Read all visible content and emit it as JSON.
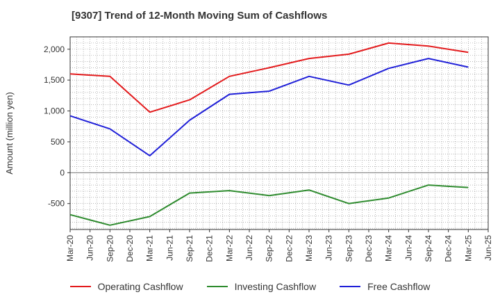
{
  "chart_data": {
    "type": "line",
    "title": "[9307]  Trend of 12-Month Moving Sum of Cashflows",
    "ylabel": "Amount (million yen)",
    "xlabel": "",
    "ylim": [
      -920,
      2200
    ],
    "yticks": [
      -500,
      0,
      500,
      1000,
      1500,
      2000
    ],
    "ytick_labels": [
      "-500",
      "0",
      "500",
      "1,000",
      "1,500",
      "2,000"
    ],
    "x_categories": [
      "Mar-20",
      "Jun-20",
      "Sep-20",
      "Dec-20",
      "Mar-21",
      "Jun-21",
      "Sep-21",
      "Dec-21",
      "Mar-22",
      "Jun-22",
      "Sep-22",
      "Dec-22",
      "Mar-23",
      "Jun-23",
      "Sep-23",
      "Dec-23",
      "Mar-24",
      "Jun-24",
      "Sep-24",
      "Dec-24",
      "Mar-25",
      "Jun-25"
    ],
    "grid": true,
    "legend_position": "bottom",
    "series": [
      {
        "name": "Operating Cashflow",
        "color": "#e31a1c",
        "points": [
          [
            "Mar-20",
            1600
          ],
          [
            "Sep-20",
            1560
          ],
          [
            "Mar-21",
            980
          ],
          [
            "Sep-21",
            1180
          ],
          [
            "Mar-22",
            1560
          ],
          [
            "Sep-22",
            1700
          ],
          [
            "Mar-23",
            1850
          ],
          [
            "Sep-23",
            1920
          ],
          [
            "Mar-24",
            2100
          ],
          [
            "Sep-24",
            2050
          ],
          [
            "Mar-25",
            1950
          ]
        ]
      },
      {
        "name": "Investing Cashflow",
        "color": "#2e8b2e",
        "points": [
          [
            "Mar-20",
            -680
          ],
          [
            "Sep-20",
            -850
          ],
          [
            "Mar-21",
            -710
          ],
          [
            "Sep-21",
            -330
          ],
          [
            "Mar-22",
            -290
          ],
          [
            "Sep-22",
            -370
          ],
          [
            "Mar-23",
            -280
          ],
          [
            "Sep-23",
            -500
          ],
          [
            "Mar-24",
            -410
          ],
          [
            "Sep-24",
            -200
          ],
          [
            "Mar-25",
            -240
          ]
        ]
      },
      {
        "name": "Free Cashflow",
        "color": "#1f1fd8",
        "points": [
          [
            "Mar-20",
            920
          ],
          [
            "Sep-20",
            710
          ],
          [
            "Mar-21",
            275
          ],
          [
            "Sep-21",
            850
          ],
          [
            "Mar-22",
            1270
          ],
          [
            "Sep-22",
            1320
          ],
          [
            "Mar-23",
            1560
          ],
          [
            "Sep-23",
            1420
          ],
          [
            "Mar-24",
            1690
          ],
          [
            "Sep-24",
            1850
          ],
          [
            "Mar-25",
            1710
          ]
        ]
      }
    ]
  }
}
